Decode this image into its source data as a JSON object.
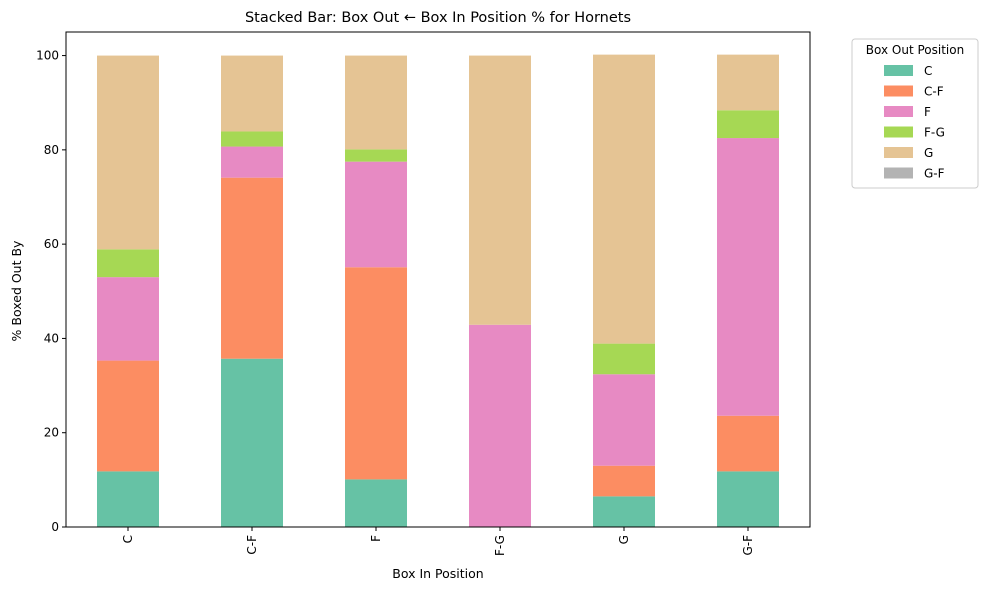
{
  "chart_data": {
    "type": "bar",
    "stacked": true,
    "title": "Stacked Bar: Box Out ← Box In Position % for Hornets",
    "xlabel": "Box In Position",
    "ylabel": "% Boxed Out By",
    "ylim": [
      0,
      105
    ],
    "yticks": [
      0,
      20,
      40,
      60,
      80,
      100
    ],
    "grid": false,
    "legend": {
      "title": "Box Out Position",
      "placement": "outside-top-right"
    },
    "categories": [
      "C",
      "C-F",
      "F",
      "F-G",
      "G",
      "G-F"
    ],
    "series": [
      {
        "name": "C",
        "color": "#66c2a5",
        "values": [
          11.8,
          35.7,
          10.1,
          0.0,
          6.5,
          11.8
        ]
      },
      {
        "name": "C-F",
        "color": "#fc8d62",
        "values": [
          23.5,
          38.4,
          45.0,
          0.0,
          6.5,
          11.8
        ]
      },
      {
        "name": "F",
        "color": "#e78ac3",
        "values": [
          17.7,
          6.6,
          22.4,
          42.9,
          19.4,
          58.9
        ]
      },
      {
        "name": "F-G",
        "color": "#a6d854",
        "values": [
          5.9,
          3.2,
          2.6,
          0.0,
          6.5,
          5.9
        ]
      },
      {
        "name": "G",
        "color": "#e5c494",
        "values": [
          41.1,
          16.1,
          19.9,
          57.1,
          61.3,
          11.8
        ]
      },
      {
        "name": "G-F",
        "color": "#b3b3b3",
        "values": [
          0.0,
          0.0,
          0.0,
          0.0,
          0.0,
          0.0
        ]
      }
    ]
  }
}
